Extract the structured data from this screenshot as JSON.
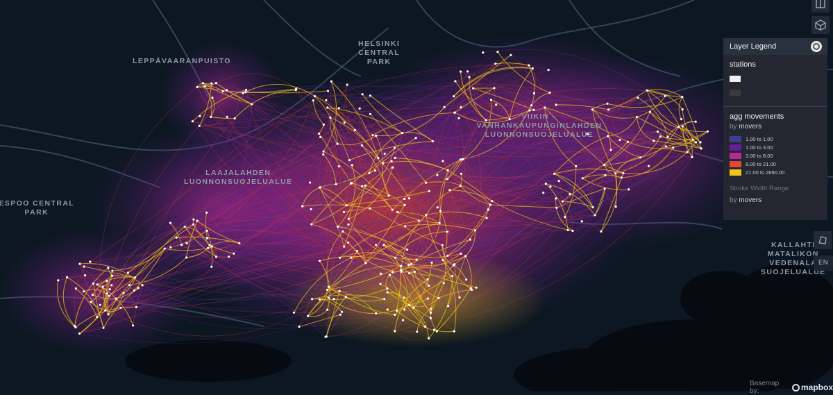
{
  "map": {
    "place_labels": [
      {
        "id": "leppavaara",
        "lines": [
          "LEPPÄVAARANPUISTO"
        ]
      },
      {
        "id": "helsinki-central-park",
        "lines": [
          "HELSINKI",
          "CENTRAL",
          "PARK"
        ]
      },
      {
        "id": "viikki",
        "lines": [
          "VIIKIN –",
          "VANHANKAUPUNGINLAHDEN",
          "LUONNONSUOJELUALUE"
        ]
      },
      {
        "id": "laajalahden",
        "lines": [
          "LAAJALAHDEN",
          "LUONNONSUOJELUALUE"
        ]
      },
      {
        "id": "espoo-central-park",
        "lines": [
          "ESPOO CENTRAL",
          "PARK"
        ]
      },
      {
        "id": "kallahti",
        "lines": [
          "KALLAHTI",
          "MATALIKON",
          "VEDENALA",
          "SUOJELUALUE"
        ]
      }
    ],
    "colors": {
      "background": "#0d1722",
      "roads": "#3a5266",
      "water": "#050a10",
      "station": "#ffffff"
    }
  },
  "legend": {
    "header": "Layer Legend",
    "header_icon": "layer-legend-icon",
    "stations": {
      "title": "stations",
      "swatches": [
        "#f0f0f0",
        "#3b3b3b"
      ]
    },
    "movements": {
      "title": "agg movements",
      "by_label": "by",
      "by_field": "movers",
      "ranges": [
        {
          "label": "1.00 to 1.00",
          "color": "#3a3f8f"
        },
        {
          "label": "1.00 to 3.00",
          "color": "#6a1d9a"
        },
        {
          "label": "3.00 to 8.00",
          "color": "#b42a93"
        },
        {
          "label": "8.00 to 21.00",
          "color": "#e0453c"
        },
        {
          "label": "21.00 to 2690.00",
          "color": "#f0c419"
        }
      ],
      "stroke_title": "Stroke Width Range",
      "stroke_by_label": "by",
      "stroke_by_field": "movers"
    }
  },
  "controls": {
    "language": "EN"
  },
  "attribution": {
    "prefix": "Basemap by:",
    "brand": "mapbox"
  }
}
